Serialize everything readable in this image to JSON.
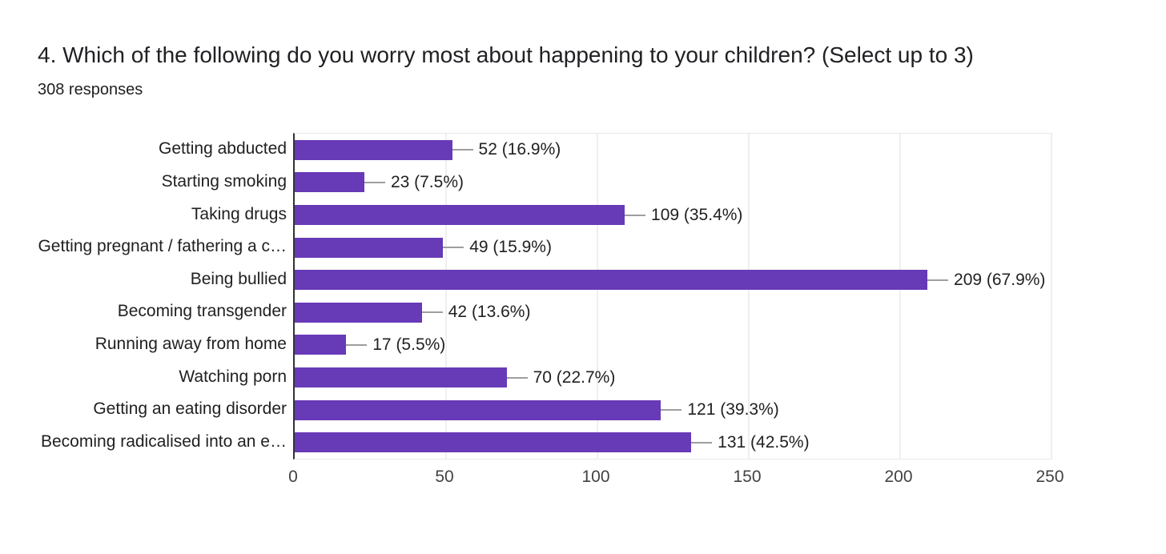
{
  "header": {
    "title": "4. Which of the following do you worry most about happening to your children? (Select up to 3)",
    "responses_label": "308 responses"
  },
  "chart_data": {
    "type": "bar",
    "orientation": "horizontal",
    "title": "4. Which of the following do you worry most about happening to your children? (Select up to 3)",
    "subtitle": "308 responses",
    "total_responses": 308,
    "categories": [
      "Getting abducted",
      "Starting smoking",
      "Taking drugs",
      "Getting pregnant / fathering a c…",
      "Being bullied",
      "Becoming transgender",
      "Running away from home",
      "Watching porn",
      "Getting an eating disorder",
      "Becoming radicalised into an e…"
    ],
    "values": [
      52,
      23,
      109,
      49,
      209,
      42,
      17,
      70,
      121,
      131
    ],
    "percentages": [
      16.9,
      7.5,
      35.4,
      15.9,
      67.9,
      13.6,
      5.5,
      22.7,
      39.3,
      42.5
    ],
    "value_labels": [
      "52 (16.9%)",
      "23 (7.5%)",
      "109 (35.4%)",
      "49 (15.9%)",
      "209 (67.9%)",
      "42 (13.6%)",
      "17 (5.5%)",
      "70 (22.7%)",
      "121 (39.3%)",
      "131 (42.5%)"
    ],
    "x_ticks": [
      0,
      50,
      100,
      150,
      200,
      250
    ],
    "xlim": [
      0,
      250
    ],
    "grid": true,
    "legend": "none",
    "bar_color": "#673ab7",
    "axis_color": "#333333",
    "gridline_color": "#efefef",
    "leader_color": "#9e9e9e",
    "text_color": "#212121",
    "background_color": "#ffffff"
  }
}
